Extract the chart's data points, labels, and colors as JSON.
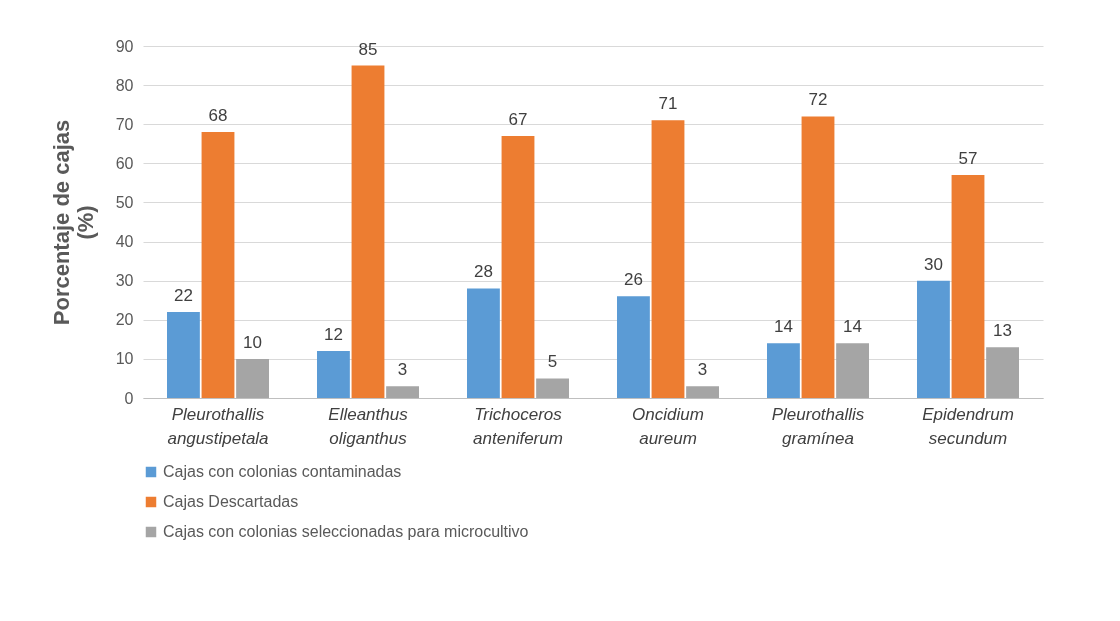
{
  "chart_data": {
    "type": "bar",
    "ylabel": "Porcentaje de cajas (%)",
    "categories": [
      "Pleurothallis angustipetala",
      "Elleanthus oliganthus",
      "Trichoceros anteniferum",
      "Oncidium aureum",
      "Pleurothallis gramínea",
      "Epidendrum secundum"
    ],
    "series": [
      {
        "name": "Cajas con colonias contaminadas",
        "color": "#5b9bd5",
        "values": [
          22,
          12,
          28,
          26,
          14,
          30
        ]
      },
      {
        "name": "Cajas Descartadas",
        "color": "#ed7d31",
        "values": [
          68,
          85,
          67,
          71,
          72,
          57
        ]
      },
      {
        "name": "Cajas con colonias seleccionadas para microcultivo",
        "color": "#a5a5a5",
        "values": [
          10,
          3,
          5,
          3,
          14,
          13
        ]
      }
    ],
    "ylim": [
      0,
      90
    ],
    "yticks": [
      0,
      10,
      20,
      30,
      40,
      50,
      60,
      70,
      80,
      90
    ],
    "grid": "y",
    "legend": "bottom",
    "data_labels": true
  }
}
